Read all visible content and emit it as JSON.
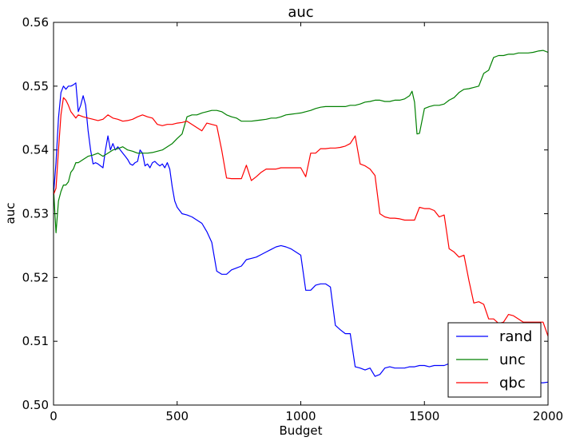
{
  "chart_data": {
    "type": "line",
    "title": "auc",
    "xlabel": "Budget",
    "ylabel": "auc",
    "xlim": [
      0,
      2000
    ],
    "ylim": [
      0.5,
      0.56
    ],
    "xticks": [
      0,
      500,
      1000,
      1500,
      2000
    ],
    "xtick_labels": [
      "0",
      "500",
      "1000",
      "1500",
      "2000"
    ],
    "yticks": [
      0.5,
      0.51,
      0.52,
      0.53,
      0.54,
      0.55,
      0.56
    ],
    "ytick_labels": [
      "0.50",
      "0.51",
      "0.52",
      "0.53",
      "0.54",
      "0.55",
      "0.56"
    ],
    "grid": false,
    "legend_position": "lower-right",
    "series": [
      {
        "name": "rand",
        "color": "#0000ff",
        "x": [
          0,
          10,
          20,
          30,
          40,
          50,
          60,
          70,
          80,
          90,
          100,
          110,
          120,
          130,
          140,
          150,
          160,
          170,
          180,
          190,
          200,
          210,
          220,
          230,
          240,
          250,
          260,
          270,
          280,
          290,
          300,
          310,
          320,
          330,
          340,
          350,
          360,
          370,
          380,
          390,
          400,
          410,
          420,
          430,
          440,
          450,
          460,
          470,
          480,
          490,
          500,
          520,
          540,
          560,
          580,
          600,
          620,
          640,
          660,
          680,
          700,
          720,
          740,
          760,
          780,
          800,
          820,
          840,
          860,
          880,
          900,
          920,
          940,
          960,
          980,
          1000,
          1020,
          1040,
          1060,
          1080,
          1100,
          1120,
          1140,
          1160,
          1180,
          1200,
          1220,
          1240,
          1260,
          1280,
          1300,
          1320,
          1340,
          1360,
          1380,
          1400,
          1420,
          1440,
          1460,
          1480,
          1500,
          1520,
          1540,
          1560,
          1580,
          1600,
          1620,
          1640,
          1660,
          1680,
          1700,
          1720,
          1740,
          1760,
          1780,
          1800,
          1820,
          1840,
          1860,
          1880,
          1900,
          1920,
          1940,
          1960,
          1980,
          2000
        ],
        "values": [
          0.533,
          0.538,
          0.545,
          0.549,
          0.55,
          0.5495,
          0.55,
          0.55,
          0.5502,
          0.5505,
          0.546,
          0.547,
          0.5485,
          0.547,
          0.543,
          0.54,
          0.5378,
          0.538,
          0.5378,
          0.5375,
          0.5372,
          0.54,
          0.5422,
          0.54,
          0.541,
          0.54,
          0.5405,
          0.54,
          0.5395,
          0.539,
          0.5385,
          0.5378,
          0.5376,
          0.538,
          0.5382,
          0.54,
          0.5395,
          0.5375,
          0.5378,
          0.5372,
          0.538,
          0.5382,
          0.5378,
          0.5375,
          0.5378,
          0.5372,
          0.538,
          0.537,
          0.5342,
          0.532,
          0.531,
          0.53,
          0.5298,
          0.5295,
          0.529,
          0.5285,
          0.5272,
          0.5255,
          0.521,
          0.5205,
          0.5205,
          0.5212,
          0.5215,
          0.5218,
          0.5228,
          0.523,
          0.5232,
          0.5236,
          0.524,
          0.5244,
          0.5248,
          0.525,
          0.5248,
          0.5245,
          0.524,
          0.5235,
          0.518,
          0.518,
          0.5188,
          0.519,
          0.519,
          0.5185,
          0.5125,
          0.5118,
          0.5112,
          0.5112,
          0.506,
          0.5058,
          0.5055,
          0.5058,
          0.5045,
          0.5048,
          0.5058,
          0.506,
          0.5058,
          0.5058,
          0.5058,
          0.506,
          0.506,
          0.5062,
          0.5062,
          0.506,
          0.5062,
          0.5062,
          0.5062,
          0.5065,
          0.507,
          0.5075,
          0.508,
          0.5082,
          0.508,
          0.5078,
          0.5075,
          0.507,
          0.5065,
          0.5058,
          0.5052,
          0.5048,
          0.5045,
          0.5042,
          0.504,
          0.5038,
          0.5036,
          0.5035,
          0.5035,
          0.5036
        ]
      },
      {
        "name": "unc",
        "color": "#008000",
        "x": [
          0,
          10,
          20,
          30,
          40,
          50,
          60,
          70,
          80,
          90,
          100,
          120,
          140,
          160,
          180,
          200,
          220,
          240,
          260,
          280,
          300,
          320,
          340,
          360,
          380,
          400,
          420,
          440,
          460,
          480,
          500,
          520,
          540,
          560,
          580,
          600,
          620,
          640,
          660,
          680,
          700,
          720,
          740,
          760,
          780,
          800,
          820,
          840,
          860,
          880,
          900,
          920,
          940,
          960,
          980,
          1000,
          1020,
          1040,
          1060,
          1080,
          1100,
          1120,
          1140,
          1160,
          1180,
          1200,
          1220,
          1240,
          1260,
          1280,
          1300,
          1320,
          1340,
          1360,
          1380,
          1400,
          1420,
          1440,
          1450,
          1460,
          1470,
          1480,
          1500,
          1520,
          1540,
          1560,
          1580,
          1600,
          1620,
          1640,
          1660,
          1680,
          1700,
          1720,
          1740,
          1760,
          1780,
          1800,
          1820,
          1840,
          1860,
          1880,
          1900,
          1920,
          1940,
          1960,
          1980,
          2000
        ],
        "values": [
          0.534,
          0.527,
          0.532,
          0.5335,
          0.5345,
          0.5345,
          0.535,
          0.5365,
          0.537,
          0.538,
          0.538,
          0.5385,
          0.539,
          0.5392,
          0.5395,
          0.539,
          0.5395,
          0.54,
          0.5402,
          0.5405,
          0.54,
          0.5398,
          0.5395,
          0.5395,
          0.5395,
          0.5396,
          0.5398,
          0.54,
          0.5405,
          0.541,
          0.5418,
          0.5425,
          0.5452,
          0.5455,
          0.5455,
          0.5458,
          0.546,
          0.5462,
          0.5462,
          0.546,
          0.5455,
          0.5452,
          0.545,
          0.5445,
          0.5445,
          0.5445,
          0.5446,
          0.5447,
          0.5448,
          0.545,
          0.545,
          0.5452,
          0.5455,
          0.5456,
          0.5457,
          0.5458,
          0.546,
          0.5462,
          0.5465,
          0.5467,
          0.5468,
          0.5468,
          0.5468,
          0.5468,
          0.5468,
          0.547,
          0.547,
          0.5472,
          0.5475,
          0.5476,
          0.5478,
          0.5478,
          0.5476,
          0.5476,
          0.5478,
          0.5478,
          0.548,
          0.5485,
          0.5492,
          0.5475,
          0.5425,
          0.5426,
          0.5465,
          0.5468,
          0.547,
          0.547,
          0.5472,
          0.5478,
          0.5482,
          0.549,
          0.5495,
          0.5496,
          0.5498,
          0.55,
          0.552,
          0.5525,
          0.5545,
          0.5548,
          0.5548,
          0.555,
          0.555,
          0.5552,
          0.5552,
          0.5552,
          0.5553,
          0.5555,
          0.5556,
          0.5553
        ]
      },
      {
        "name": "qbc",
        "color": "#ff0000",
        "x": [
          0,
          10,
          20,
          30,
          40,
          50,
          60,
          70,
          80,
          90,
          100,
          120,
          140,
          160,
          180,
          200,
          220,
          240,
          260,
          280,
          300,
          320,
          340,
          360,
          380,
          400,
          420,
          440,
          460,
          480,
          500,
          520,
          540,
          560,
          580,
          600,
          620,
          640,
          660,
          680,
          700,
          720,
          740,
          760,
          780,
          800,
          820,
          840,
          860,
          880,
          900,
          920,
          940,
          960,
          980,
          1000,
          1020,
          1040,
          1060,
          1080,
          1100,
          1120,
          1140,
          1160,
          1180,
          1200,
          1220,
          1240,
          1260,
          1280,
          1300,
          1320,
          1340,
          1360,
          1380,
          1400,
          1420,
          1440,
          1460,
          1480,
          1500,
          1520,
          1540,
          1560,
          1580,
          1600,
          1620,
          1640,
          1660,
          1680,
          1700,
          1720,
          1740,
          1760,
          1780,
          1800,
          1820,
          1840,
          1860,
          1880,
          1900,
          1920,
          1940,
          1960,
          1980,
          2000
        ],
        "values": [
          0.533,
          0.534,
          0.54,
          0.5455,
          0.5482,
          0.5478,
          0.547,
          0.546,
          0.5455,
          0.545,
          0.5455,
          0.5452,
          0.545,
          0.5448,
          0.5446,
          0.5448,
          0.5455,
          0.545,
          0.5448,
          0.5445,
          0.5446,
          0.5448,
          0.5452,
          0.5455,
          0.5452,
          0.545,
          0.544,
          0.5438,
          0.544,
          0.544,
          0.5442,
          0.5443,
          0.5445,
          0.544,
          0.5435,
          0.543,
          0.5442,
          0.544,
          0.5438,
          0.54,
          0.5356,
          0.5355,
          0.5355,
          0.5355,
          0.5376,
          0.5352,
          0.5358,
          0.5365,
          0.537,
          0.537,
          0.537,
          0.5372,
          0.5372,
          0.5372,
          0.5372,
          0.5372,
          0.5358,
          0.5395,
          0.5395,
          0.5402,
          0.5402,
          0.5403,
          0.5403,
          0.5404,
          0.5406,
          0.541,
          0.5422,
          0.5378,
          0.5375,
          0.537,
          0.536,
          0.53,
          0.5295,
          0.5293,
          0.5293,
          0.5292,
          0.529,
          0.529,
          0.529,
          0.531,
          0.5308,
          0.5308,
          0.5305,
          0.5295,
          0.5298,
          0.5245,
          0.524,
          0.5232,
          0.5235,
          0.5195,
          0.516,
          0.5162,
          0.5158,
          0.5135,
          0.5135,
          0.5128,
          0.513,
          0.5142,
          0.514,
          0.5135,
          0.513,
          0.513,
          0.513,
          0.513,
          0.513,
          0.5108
        ]
      }
    ]
  }
}
